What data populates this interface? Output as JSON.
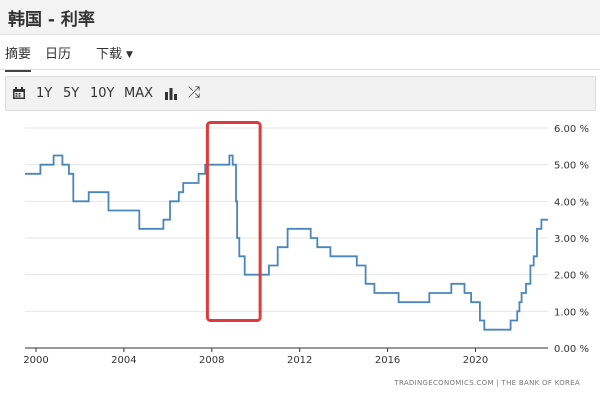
{
  "header": {
    "title": "韩国 - 利率"
  },
  "tabs": [
    {
      "label": "摘要"
    },
    {
      "label": "日历"
    },
    {
      "label": "下载"
    }
  ],
  "toolbar": {
    "ranges": [
      "1Y",
      "5Y",
      "10Y",
      "MAX"
    ],
    "icons": [
      "calendar-icon",
      "bar-chart-icon",
      "shuffle-icon"
    ]
  },
  "colors": {
    "line": "#4a86b9",
    "highlight": "#e03a3a",
    "grid": "#e6e6e6"
  },
  "chart_data": {
    "type": "line",
    "title": "",
    "xlabel": "",
    "ylabel": "",
    "xlim": [
      1999.5,
      2023.3
    ],
    "ylim": [
      0,
      6
    ],
    "x_ticks": [
      2000,
      2004,
      2008,
      2012,
      2016,
      2020
    ],
    "y_ticks": [
      "0.00 %",
      "1.00 %",
      "2.00 %",
      "3.00 %",
      "4.00 %",
      "5.00 %",
      "6.00 %"
    ],
    "grid": "horizontal",
    "source": "TRADINGECONOMICS.COM  |  THE BANK OF KOREA",
    "highlight_box": {
      "x_range": [
        2007.8,
        2010.2
      ],
      "y_range": [
        0.75,
        6.15
      ]
    },
    "series": [
      {
        "step": true,
        "x": [
          1999.5,
          2000.2,
          2000.8,
          2001.2,
          2001.5,
          2001.7,
          2002.4,
          2003.3,
          2004.7,
          2005.8,
          2006.1,
          2006.5,
          2006.7,
          2007.4,
          2007.7,
          2007.9,
          2008.8,
          2008.95,
          2009.1,
          2009.15,
          2009.25,
          2009.5,
          2010.6,
          2011.0,
          2011.45,
          2012.5,
          2012.8,
          2013.4,
          2014.6,
          2015.0,
          2015.4,
          2016.5,
          2017.9,
          2018.9,
          2019.5,
          2019.8,
          2020.2,
          2020.4,
          2021.6,
          2021.9,
          2022.0,
          2022.1,
          2022.3,
          2022.5,
          2022.65,
          2022.8,
          2023.0,
          2023.3
        ],
        "y": [
          4.75,
          5.0,
          5.25,
          5.0,
          4.75,
          4.0,
          4.25,
          3.75,
          3.25,
          3.5,
          4.0,
          4.25,
          4.5,
          4.75,
          5.0,
          5.0,
          5.25,
          5.0,
          4.0,
          3.0,
          2.5,
          2.0,
          2.25,
          2.75,
          3.25,
          3.0,
          2.75,
          2.5,
          2.25,
          1.75,
          1.5,
          1.25,
          1.5,
          1.75,
          1.5,
          1.25,
          0.75,
          0.5,
          0.75,
          1.0,
          1.25,
          1.5,
          1.75,
          2.25,
          2.5,
          3.25,
          3.5,
          3.5
        ]
      }
    ]
  }
}
